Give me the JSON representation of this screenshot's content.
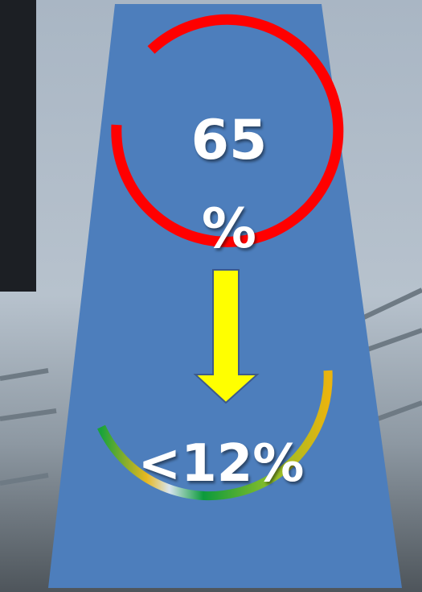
{
  "top_figure": "65 %",
  "bottom_figure": "<12%"
}
